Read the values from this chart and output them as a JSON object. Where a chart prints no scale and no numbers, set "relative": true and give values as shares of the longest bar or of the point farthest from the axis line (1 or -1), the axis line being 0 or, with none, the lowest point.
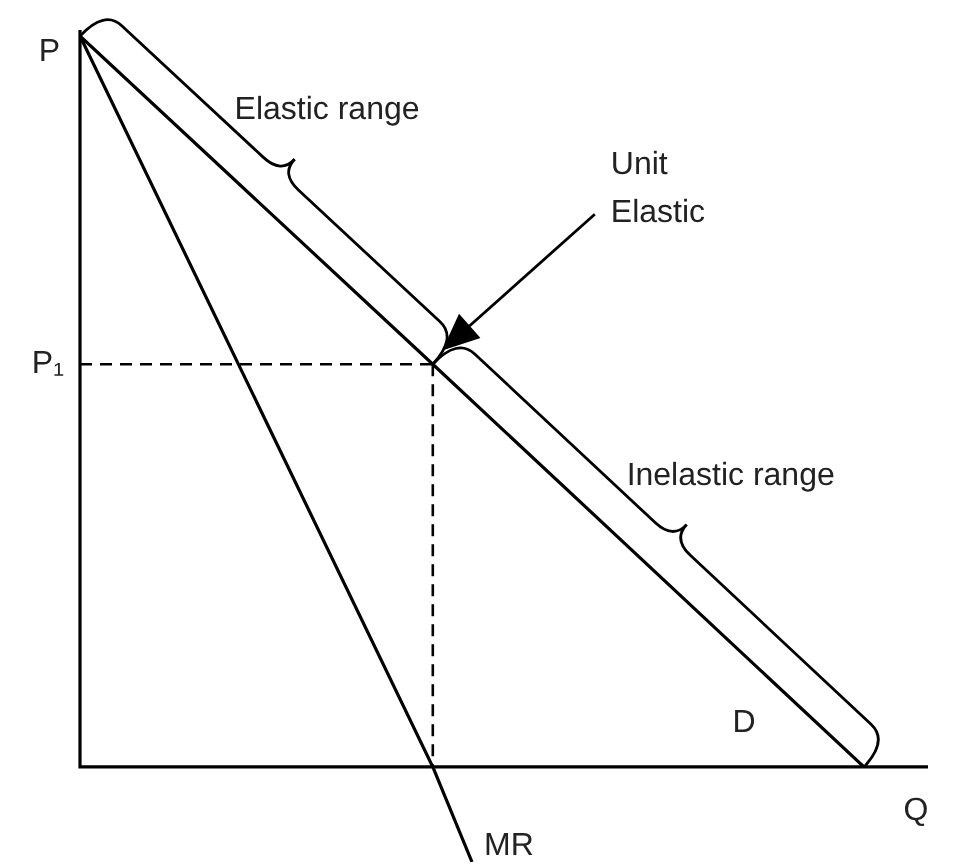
{
  "chart_data": {
    "type": "line",
    "relative": true,
    "xlabel": "Q",
    "ylabel": "P",
    "marker": "none",
    "line_style": "solid",
    "legend": false,
    "categories": [
      null,
      null,
      null,
      null,
      null,
      null,
      null,
      null,
      null,
      null,
      null,
      null,
      null,
      null,
      null,
      null,
      null,
      null,
      null,
      null,
      null
    ],
    "series": [
      {
        "name": "D",
        "color": "#000000",
        "values": [
          1,
          null,
          null,
          null,
          null,
          null,
          null,
          null,
          null,
          0.551,
          null,
          null,
          null,
          null,
          null,
          null,
          null,
          null,
          null,
          null,
          0
        ]
      },
      {
        "name": "MR",
        "color": "#000000",
        "values": [
          1,
          null,
          null,
          null,
          null,
          null,
          null,
          null,
          null,
          0,
          -0.13,
          null,
          null,
          null,
          null,
          null,
          null,
          null,
          null,
          null,
          null
        ]
      }
    ],
    "ref_lines": [
      {
        "axis": "y",
        "value": 0.551,
        "label": "P₁",
        "line_style": "dashed",
        "color": "#000000"
      }
    ],
    "annotations": [
      "Elastic range",
      "Unit Elastic",
      "Inelastic range"
    ]
  }
}
